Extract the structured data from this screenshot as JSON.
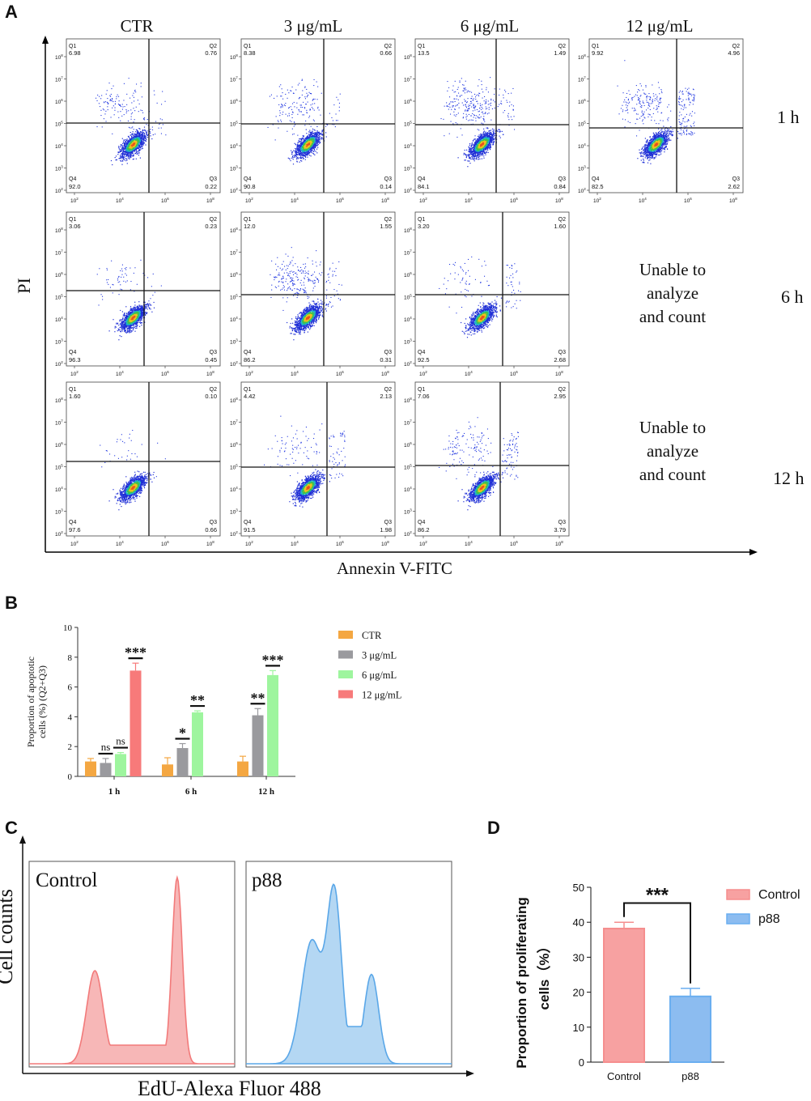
{
  "panels": {
    "a": "A",
    "b": "B",
    "c": "C",
    "d": "D"
  },
  "panel_a": {
    "columns": [
      "CTR",
      "3 μg/mL",
      "6 μg/mL",
      "12 μg/mL"
    ],
    "rows": [
      "1 h",
      "6 h",
      "12 h"
    ],
    "y_axis_label": "PI",
    "x_axis_label": "Annexin V-FITC",
    "unable_text": [
      "Unable to",
      "analyze",
      "and count"
    ],
    "quadrant_names": [
      "Q1",
      "Q2",
      "Q3",
      "Q4"
    ],
    "tick_y": [
      "10",
      "10",
      "10",
      "10",
      "10",
      "10",
      "10"
    ],
    "tick_y_exp": [
      "8",
      "7",
      "6",
      "5",
      "4",
      "3",
      "2"
    ],
    "tick_x_exp": [
      "2",
      "4",
      "6",
      "8"
    ],
    "plots": [
      {
        "row": 0,
        "col": 0,
        "q1": "6.98",
        "q2": "0.76",
        "q3": "0.22",
        "q4": "92.0"
      },
      {
        "row": 0,
        "col": 1,
        "q1": "8.38",
        "q2": "0.66",
        "q3": "0.14",
        "q4": "90.8"
      },
      {
        "row": 0,
        "col": 2,
        "q1": "13.5",
        "q2": "1.49",
        "q3": "0.84",
        "q4": "84.1"
      },
      {
        "row": 0,
        "col": 3,
        "q1": "9.92",
        "q2": "4.96",
        "q3": "2.62",
        "q4": "82.5"
      },
      {
        "row": 1,
        "col": 0,
        "q1": "3.06",
        "q2": "0.23",
        "q3": "0.45",
        "q4": "96.3"
      },
      {
        "row": 1,
        "col": 1,
        "q1": "12.0",
        "q2": "1.55",
        "q3": "0.31",
        "q4": "86.2"
      },
      {
        "row": 1,
        "col": 2,
        "q1": "3.20",
        "q2": "1.60",
        "q3": "2.68",
        "q4": "92.5"
      },
      {
        "row": 2,
        "col": 0,
        "q1": "1.60",
        "q2": "0.10",
        "q3": "0.66",
        "q4": "97.6"
      },
      {
        "row": 2,
        "col": 1,
        "q1": "4.42",
        "q2": "2.13",
        "q3": "1.98",
        "q4": "91.5"
      },
      {
        "row": 2,
        "col": 2,
        "q1": "7.06",
        "q2": "2.95",
        "q3": "3.79",
        "q4": "86.2"
      }
    ]
  },
  "chart_data": [
    {
      "type": "bar",
      "ylabel_line1": "Proportion of apoptotic",
      "ylabel_line2": "cells (%) (Q2+Q3)",
      "categories": [
        "1 h",
        "6 h",
        "12 h"
      ],
      "ylim": [
        0,
        10
      ],
      "yticks": [
        "0",
        "2",
        "4",
        "6",
        "8",
        "10"
      ],
      "colors": [
        "#f4a742",
        "#9a9a9e",
        "#9ef59e",
        "#f77a7a"
      ],
      "series": [
        {
          "name": "CTR",
          "values": [
            1.0,
            0.8,
            1.0
          ],
          "errors": [
            0.2,
            0.45,
            0.35
          ]
        },
        {
          "name": "3 μg/mL",
          "values": [
            0.9,
            1.9,
            4.1
          ],
          "errors": [
            0.3,
            0.3,
            0.45
          ]
        },
        {
          "name": "6 μg/mL",
          "values": [
            1.5,
            4.3,
            6.8
          ],
          "errors": [
            0.1,
            0.1,
            0.3
          ]
        },
        {
          "name": "12 μg/mL",
          "values": [
            7.1,
            0,
            0
          ],
          "errors": [
            0.5,
            0,
            0
          ]
        }
      ],
      "significance": [
        {
          "cat": 0,
          "ser": 1,
          "label": "ns"
        },
        {
          "cat": 0,
          "ser": 2,
          "label": "ns"
        },
        {
          "cat": 0,
          "ser": 3,
          "label": "***"
        },
        {
          "cat": 1,
          "ser": 1,
          "label": "*"
        },
        {
          "cat": 1,
          "ser": 2,
          "label": "**"
        },
        {
          "cat": 2,
          "ser": 1,
          "label": "**"
        },
        {
          "cat": 2,
          "ser": 2,
          "label": "***"
        }
      ]
    },
    {
      "type": "area",
      "ylabel": "Cell counts",
      "xlabel": "EdU-Alexa Fluor 488",
      "series": [
        {
          "name": "Control",
          "color": "#f27a7a",
          "fill": "#f7b7b7",
          "peaks": [
            {
              "x": 0.32,
              "h": 0.5,
              "w": 0.04
            },
            {
              "x": 0.72,
              "h": 1.0,
              "w": 0.025
            }
          ],
          "plateau": 0.1
        },
        {
          "name": "p88",
          "color": "#5aa7e8",
          "fill": "#b4d7f3",
          "peaks": [
            {
              "x": 0.32,
              "h": 0.66,
              "w": 0.05
            },
            {
              "x": 0.43,
              "h": 0.9,
              "w": 0.035
            },
            {
              "x": 0.61,
              "h": 0.48,
              "w": 0.035
            }
          ],
          "plateau": 0.2
        }
      ]
    },
    {
      "type": "bar",
      "ylabel_line1": "Proportion of proliferating",
      "ylabel_line2": "cells（%）",
      "categories": [
        "Control",
        "p88"
      ],
      "values": [
        38.2,
        18.8
      ],
      "errors": [
        1.8,
        2.3
      ],
      "ylim": [
        0,
        50
      ],
      "yticks": [
        "0",
        "10",
        "20",
        "30",
        "40",
        "50"
      ],
      "colors": [
        "#f58e8e",
        "#6aaef0"
      ],
      "fills": [
        "#f7a1a1",
        "#8cbcf0"
      ],
      "legend": [
        "Control",
        "p88"
      ],
      "significance": "***"
    }
  ]
}
